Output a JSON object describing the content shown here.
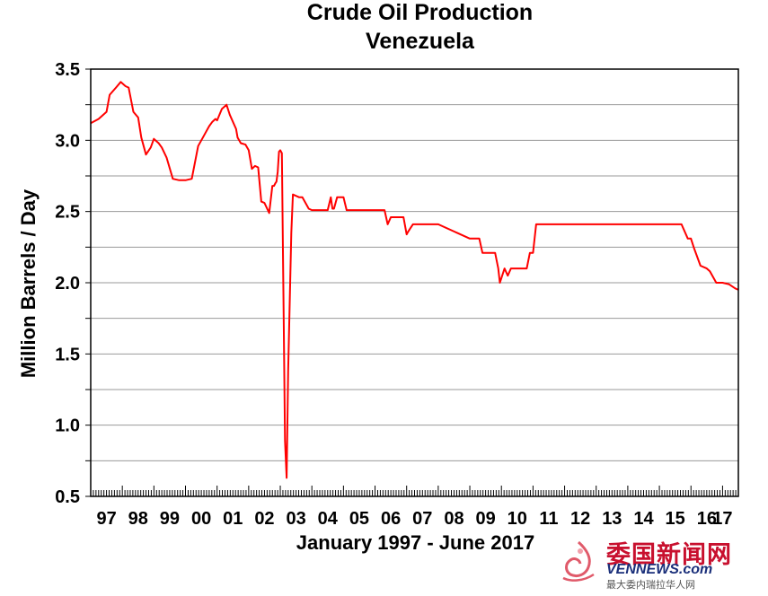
{
  "chart_data": {
    "type": "line",
    "title": "Crude Oil Production",
    "subtitle": "Venezuela",
    "xlabel": "January 1997 - June 2017",
    "ylabel": "Million Barrels / Day",
    "ylim": [
      0.5,
      3.5
    ],
    "xlim": [
      1997.0,
      2017.5
    ],
    "grid": "horizontal",
    "y_ticks": [
      "0.5",
      "1.0",
      "1.5",
      "2.0",
      "2.5",
      "3.0",
      "3.5"
    ],
    "x_tick_labels": [
      "97",
      "98",
      "99",
      "00",
      "01",
      "02",
      "03",
      "04",
      "05",
      "06",
      "07",
      "08",
      "09",
      "10",
      "11",
      "12",
      "13",
      "14",
      "15",
      "16",
      "17"
    ],
    "color": "#ff0000",
    "x": [
      1997.0,
      1997.25,
      1997.5,
      1997.6,
      1997.8,
      1997.95,
      1998.1,
      1998.2,
      1998.35,
      1998.5,
      1998.6,
      1998.75,
      1998.9,
      1999.0,
      1999.15,
      1999.25,
      1999.4,
      1999.6,
      1999.8,
      1999.9,
      2000.0,
      2000.2,
      2000.4,
      2000.55,
      2000.65,
      2000.75,
      2000.85,
      2000.95,
      2001.0,
      2001.15,
      2001.3,
      2001.4,
      2001.6,
      2001.65,
      2001.75,
      2001.9,
      2002.0,
      2002.1,
      2002.2,
      2002.3,
      2002.4,
      2002.5,
      2002.65,
      2002.75,
      2002.8,
      2002.85,
      2002.88,
      2002.92,
      2002.96,
      2003.0,
      2003.05,
      2003.1,
      2003.15,
      2003.2,
      2003.25,
      2003.35,
      2003.4,
      2003.6,
      2003.7,
      2003.9,
      2004.0,
      2004.5,
      2004.6,
      2004.65,
      2004.7,
      2004.8,
      2004.9,
      2005.0,
      2005.1,
      2005.2,
      2005.3,
      2005.5,
      2006.0,
      2006.3,
      2006.4,
      2006.5,
      2006.7,
      2006.9,
      2007.0,
      2007.05,
      2007.2,
      2007.4,
      2007.5,
      2008.0,
      2008.5,
      2009.0,
      2009.3,
      2009.4,
      2009.5,
      2009.8,
      2009.9,
      2009.95,
      2010.1,
      2010.2,
      2010.3,
      2010.5,
      2010.8,
      2010.9,
      2011.0,
      2011.1,
      2012.0,
      2013.0,
      2014.0,
      2015.0,
      2015.7,
      2015.9,
      2016.0,
      2016.1,
      2016.3,
      2016.5,
      2016.6,
      2016.8,
      2016.9,
      2017.0,
      2017.2,
      2017.4,
      2017.5
    ],
    "y": [
      3.12,
      3.15,
      3.2,
      3.32,
      3.37,
      3.41,
      3.38,
      3.37,
      3.2,
      3.16,
      3.02,
      2.9,
      2.95,
      3.01,
      2.98,
      2.95,
      2.88,
      2.73,
      2.72,
      2.72,
      2.72,
      2.73,
      2.96,
      3.02,
      3.06,
      3.1,
      3.13,
      3.15,
      3.14,
      3.22,
      3.25,
      3.18,
      3.08,
      3.02,
      2.98,
      2.97,
      2.93,
      2.8,
      2.82,
      2.81,
      2.57,
      2.56,
      2.49,
      2.68,
      2.68,
      2.7,
      2.71,
      2.78,
      2.92,
      2.93,
      2.91,
      1.94,
      0.89,
      0.63,
      1.38,
      2.35,
      2.62,
      2.6,
      2.6,
      2.52,
      2.51,
      2.51,
      2.6,
      2.52,
      2.52,
      2.6,
      2.6,
      2.6,
      2.51,
      2.51,
      2.51,
      2.51,
      2.51,
      2.51,
      2.41,
      2.46,
      2.46,
      2.46,
      2.34,
      2.36,
      2.41,
      2.41,
      2.41,
      2.41,
      2.36,
      2.31,
      2.31,
      2.21,
      2.21,
      2.21,
      2.1,
      2.0,
      2.1,
      2.05,
      2.1,
      2.1,
      2.1,
      2.21,
      2.21,
      2.41,
      2.41,
      2.41,
      2.41,
      2.41,
      2.41,
      2.31,
      2.31,
      2.24,
      2.12,
      2.1,
      2.08,
      2.0,
      2.0,
      2.0,
      1.99,
      1.96,
      1.95
    ]
  },
  "watermark": {
    "name_cn": "委国新闻网",
    "site": "VENNEWS.com",
    "tagline": "最大委内瑞拉华人网"
  }
}
